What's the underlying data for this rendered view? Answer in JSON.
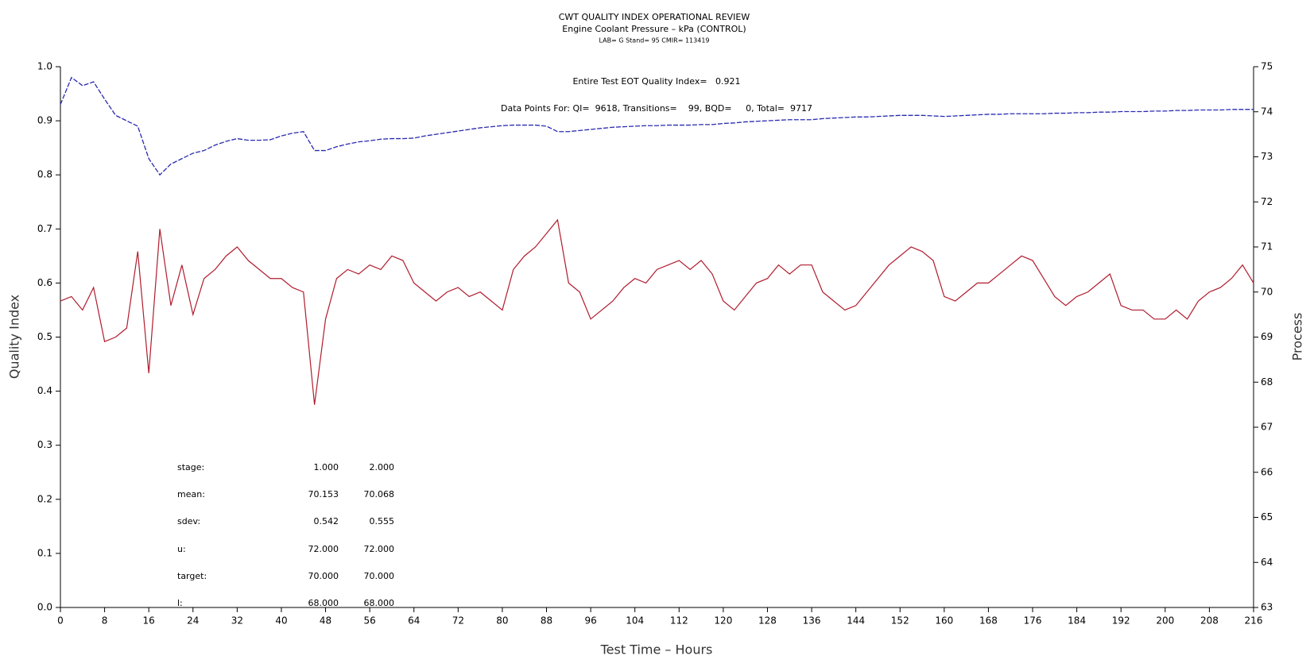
{
  "chart_data": {
    "type": "line",
    "title": "CWT QUALITY INDEX OPERATIONAL REVIEW",
    "subtitle": "Engine Coolant Pressure – kPa (CONTROL)",
    "caption": "LAB= G Stand= 95 CMIR= 113419",
    "annotations": [
      "Entire Test EOT Quality Index=   0.921",
      "Data Points For: QI=  9618, Transitions=    99, BQD=     0, Total=  9717"
    ],
    "xlabel": "Test Time – Hours",
    "ylabel": "Quality Index",
    "y2label": "Process",
    "table": {
      "rows": [
        [
          "stage:",
          "1.000",
          "2.000"
        ],
        [
          "mean:",
          "70.153",
          "70.068"
        ],
        [
          "sdev:",
          "0.542",
          "0.555"
        ],
        [
          "u:",
          "72.000",
          "72.000"
        ],
        [
          "target:",
          "70.000",
          "70.000"
        ],
        [
          "l:",
          "68.000",
          "68.000"
        ]
      ]
    },
    "x": [
      0,
      2,
      4,
      6,
      8,
      10,
      12,
      14,
      16,
      18,
      20,
      22,
      24,
      26,
      28,
      30,
      32,
      34,
      36,
      38,
      40,
      42,
      44,
      46,
      48,
      50,
      52,
      54,
      56,
      58,
      60,
      62,
      64,
      66,
      68,
      70,
      72,
      74,
      76,
      78,
      80,
      82,
      84,
      86,
      88,
      90,
      92,
      94,
      96,
      98,
      100,
      102,
      104,
      106,
      108,
      110,
      112,
      114,
      116,
      118,
      120,
      122,
      124,
      126,
      128,
      130,
      132,
      134,
      136,
      138,
      140,
      142,
      144,
      146,
      148,
      150,
      152,
      154,
      156,
      158,
      160,
      162,
      164,
      166,
      168,
      170,
      172,
      174,
      176,
      178,
      180,
      182,
      184,
      186,
      188,
      190,
      192,
      194,
      196,
      198,
      200,
      202,
      204,
      206,
      208,
      210,
      212,
      214,
      216
    ],
    "series": [
      {
        "color": "#2a2ab0",
        "dashed": true,
        "values": [
          0.93,
          0.98,
          0.965,
          0.972,
          0.94,
          0.91,
          0.9,
          0.89,
          0.83,
          0.8,
          0.82,
          0.83,
          0.84,
          0.845,
          0.855,
          0.862,
          0.867,
          0.864,
          0.864,
          0.865,
          0.872,
          0.877,
          0.88,
          0.845,
          0.845,
          0.852,
          0.857,
          0.861,
          0.863,
          0.866,
          0.867,
          0.867,
          0.868,
          0.872,
          0.875,
          0.878,
          0.881,
          0.884,
          0.887,
          0.889,
          0.891,
          0.892,
          0.892,
          0.892,
          0.89,
          0.88,
          0.88,
          0.882,
          0.884,
          0.886,
          0.888,
          0.889,
          0.89,
          0.891,
          0.891,
          0.892,
          0.892,
          0.892,
          0.893,
          0.893,
          0.895,
          0.896,
          0.898,
          0.899,
          0.9,
          0.901,
          0.902,
          0.902,
          0.902,
          0.904,
          0.905,
          0.906,
          0.907,
          0.907,
          0.908,
          0.909,
          0.91,
          0.91,
          0.91,
          0.909,
          0.908,
          0.909,
          0.91,
          0.911,
          0.912,
          0.912,
          0.913,
          0.913,
          0.913,
          0.913,
          0.914,
          0.914,
          0.915,
          0.915,
          0.916,
          0.916,
          0.917,
          0.917,
          0.917,
          0.918,
          0.918,
          0.919,
          0.919,
          0.92,
          0.92,
          0.92,
          0.921,
          0.921,
          0.921
        ]
      },
      {
        "color": "#b01c2e",
        "axis": "y2",
        "values": [
          69.8,
          69.9,
          69.6,
          70.1,
          68.9,
          69.0,
          69.2,
          70.9,
          68.2,
          71.4,
          69.7,
          70.6,
          69.5,
          70.3,
          70.5,
          70.8,
          71.0,
          70.7,
          70.5,
          70.3,
          70.3,
          70.1,
          70.0,
          67.5,
          69.4,
          70.3,
          70.5,
          70.4,
          70.6,
          70.5,
          70.8,
          70.7,
          70.2,
          70.0,
          69.8,
          70.0,
          70.1,
          69.9,
          70.0,
          69.8,
          69.6,
          70.5,
          70.8,
          71.0,
          71.3,
          71.6,
          70.2,
          70.0,
          69.4,
          69.6,
          69.8,
          70.1,
          70.3,
          70.2,
          70.5,
          70.6,
          70.7,
          70.5,
          70.7,
          70.4,
          69.8,
          69.6,
          69.9,
          70.2,
          70.3,
          70.6,
          70.4,
          70.6,
          70.6,
          70.0,
          69.8,
          69.6,
          69.7,
          70.0,
          70.3,
          70.6,
          70.8,
          71.0,
          70.9,
          70.7,
          69.9,
          69.8,
          70.0,
          70.2,
          70.2,
          70.4,
          70.6,
          70.8,
          70.7,
          70.3,
          69.9,
          69.7,
          69.9,
          70.0,
          70.2,
          70.4,
          69.7,
          69.6,
          69.6,
          69.4,
          69.4,
          69.6,
          69.4,
          69.8,
          70.0,
          70.1,
          70.3,
          70.6,
          70.2
        ]
      }
    ],
    "xlim": [
      0,
      216
    ],
    "xticks": [
      0,
      8,
      16,
      24,
      32,
      40,
      48,
      56,
      64,
      72,
      80,
      88,
      96,
      104,
      112,
      120,
      128,
      136,
      144,
      152,
      160,
      168,
      176,
      184,
      192,
      200,
      208,
      216
    ],
    "ylim": [
      0,
      1
    ],
    "yticks": [
      {
        "value": 0,
        "label": "0.0"
      },
      0.1,
      0.2,
      0.3,
      0.4,
      0.5,
      0.6,
      0.7,
      0.8,
      0.9,
      {
        "value": 1,
        "label": "1.0"
      }
    ],
    "y2lim": [
      63,
      75
    ],
    "y2ticks": [
      63,
      64,
      65,
      66,
      67,
      68,
      69,
      70,
      71,
      72,
      73,
      74,
      75
    ]
  }
}
